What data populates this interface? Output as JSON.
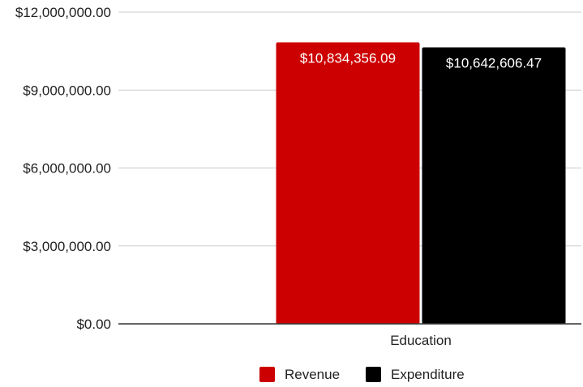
{
  "chart_data": {
    "type": "bar",
    "categories": [
      "Education"
    ],
    "series": [
      {
        "name": "Revenue",
        "values": [
          10834356.09
        ],
        "color": "#cc0000",
        "label": "$10,834,356.09"
      },
      {
        "name": "Expenditure",
        "values": [
          10642606.47
        ],
        "color": "#000000",
        "label": "$10,642,606.47"
      }
    ],
    "ylim": [
      0,
      12000000
    ],
    "yticks": [
      0,
      3000000,
      6000000,
      9000000,
      12000000
    ],
    "ytick_labels": [
      "$0.00",
      "$3,000,000.00",
      "$6,000,000.00",
      "$9,000,000.00",
      "$12,000,000.00"
    ],
    "grid": true,
    "legend_position": "bottom",
    "gridline_color": "#cccccc",
    "axis_color": "#333333"
  }
}
